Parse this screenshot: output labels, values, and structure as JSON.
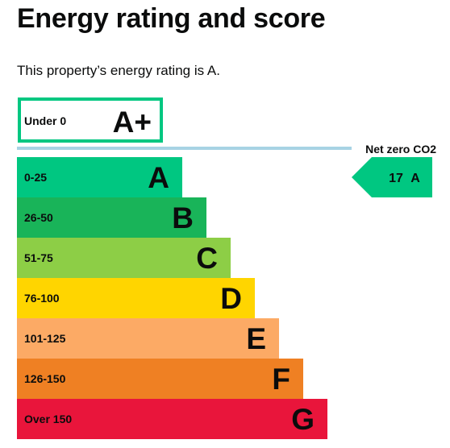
{
  "heading": "Energy rating and score",
  "summary": "This property’s energy rating is A.",
  "colors": {
    "A+": "#00c781",
    "A": "#00c781",
    "B": "#19b459",
    "C": "#8dce46",
    "D": "#ffd500",
    "E": "#fcaa65",
    "F": "#ef8023",
    "G": "#e9153b",
    "net_zero_line": "#a7d3e4"
  },
  "chart_data": {
    "type": "bar",
    "title": "",
    "top_band": {
      "range": "Under 0",
      "letter": "A+"
    },
    "net_zero_label": "Net zero CO2",
    "bands": [
      {
        "range": "0-25",
        "letter": "A"
      },
      {
        "range": "26-50",
        "letter": "B"
      },
      {
        "range": "51-75",
        "letter": "C"
      },
      {
        "range": "76-100",
        "letter": "D"
      },
      {
        "range": "101-125",
        "letter": "E"
      },
      {
        "range": "126-150",
        "letter": "F"
      },
      {
        "range": "Over 150",
        "letter": "G"
      }
    ],
    "current": {
      "score": "17",
      "rating": "A"
    }
  }
}
